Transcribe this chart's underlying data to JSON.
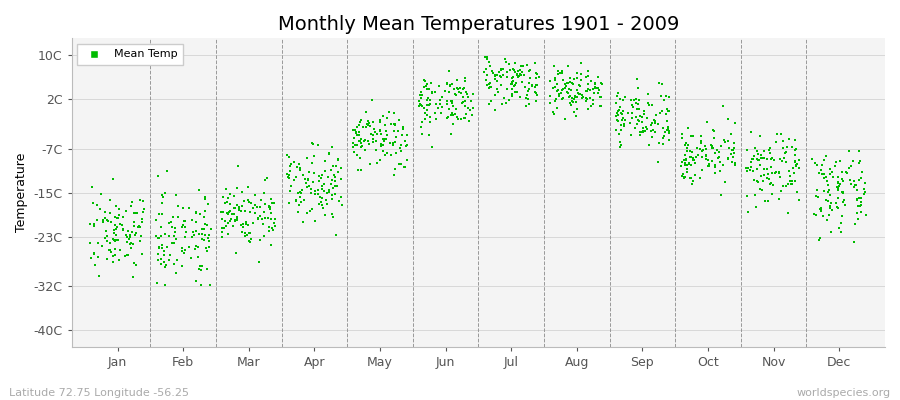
{
  "title": "Monthly Mean Temperatures 1901 - 2009",
  "ylabel": "Temperature",
  "subtitle": "Latitude 72.75 Longitude -56.25",
  "watermark": "worldspecies.org",
  "dot_color": "#00bb00",
  "dot_size": 4,
  "background_color": "#ffffff",
  "plot_bg_color": "#f4f4f4",
  "yticks": [
    -40,
    -32,
    -23,
    -15,
    -7,
    2,
    10
  ],
  "ytick_labels": [
    "-40C",
    "-32C",
    "-23C",
    "-15C",
    "-7C",
    "2C",
    "10C"
  ],
  "ylim": [
    -43,
    13
  ],
  "xlim": [
    0.3,
    12.7
  ],
  "months": [
    "Jan",
    "Feb",
    "Mar",
    "Apr",
    "May",
    "Jun",
    "Jul",
    "Aug",
    "Sep",
    "Oct",
    "Nov",
    "Dec"
  ],
  "month_means": [
    -22,
    -22.5,
    -19,
    -13,
    -5.5,
    1.5,
    5.5,
    3.5,
    -1.5,
    -8,
    -11,
    -15
  ],
  "month_stds": [
    3.5,
    4.0,
    3.0,
    3.2,
    2.8,
    2.5,
    2.2,
    2.2,
    2.5,
    2.5,
    3.0,
    3.5
  ],
  "n_points": 109,
  "seed": 7,
  "legend_label": "Mean Temp",
  "title_fontsize": 14,
  "axis_fontsize": 9,
  "ylabel_fontsize": 9
}
